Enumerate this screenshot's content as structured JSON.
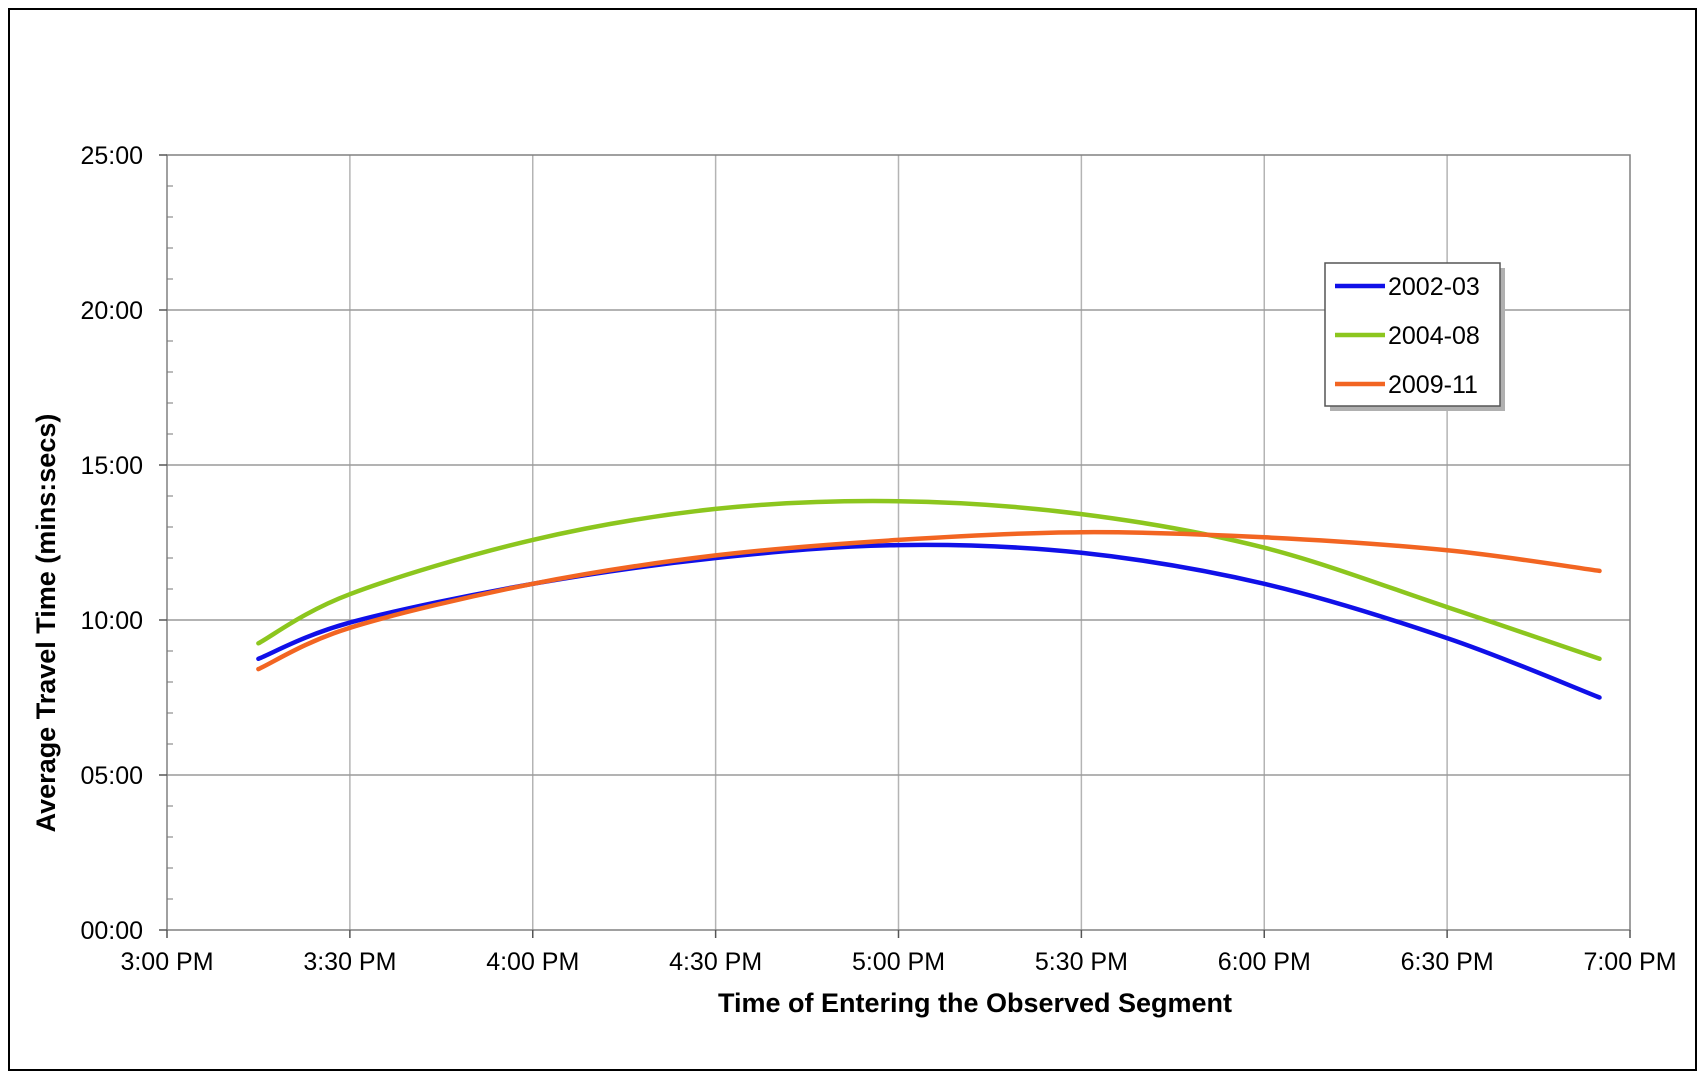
{
  "chart_data": {
    "type": "line",
    "title": "",
    "xlabel": "Time of Entering the Observed Segment",
    "ylabel": "Average Travel Time (mins:secs)",
    "x_unit": "time of day",
    "y_unit": "mins:secs",
    "xlim": [
      "3:00 PM",
      "7:00 PM"
    ],
    "ylim": [
      "00:00",
      "25:00"
    ],
    "x_ticks": [
      "3:00 PM",
      "3:30 PM",
      "4:00 PM",
      "4:30 PM",
      "5:00 PM",
      "5:30 PM",
      "6:00 PM",
      "6:30 PM",
      "7:00 PM"
    ],
    "y_ticks": [
      "00:00",
      "05:00",
      "10:00",
      "15:00",
      "20:00",
      "25:00"
    ],
    "grid": true,
    "legend_position": "top-right",
    "x": [
      "3:15 PM",
      "3:30 PM",
      "4:00 PM",
      "4:30 PM",
      "5:00 PM",
      "5:30 PM",
      "6:00 PM",
      "6:30 PM",
      "6:55 PM"
    ],
    "series": [
      {
        "name": "2002-03",
        "color": "#1010e8",
        "values": [
          "08:45",
          "09:55",
          "11:10",
          "12:00",
          "12:25",
          "12:10",
          "11:10",
          "09:25",
          "07:30"
        ]
      },
      {
        "name": "2004-08",
        "color": "#8cc61e",
        "values": [
          "09:15",
          "10:50",
          "12:35",
          "13:35",
          "13:50",
          "13:25",
          "12:20",
          "10:25",
          "08:45"
        ]
      },
      {
        "name": "2009-11",
        "color": "#f26522",
        "values": [
          "08:25",
          "09:45",
          "11:10",
          "12:05",
          "12:35",
          "12:50",
          "12:40",
          "12:15",
          "11:35"
        ]
      }
    ]
  }
}
